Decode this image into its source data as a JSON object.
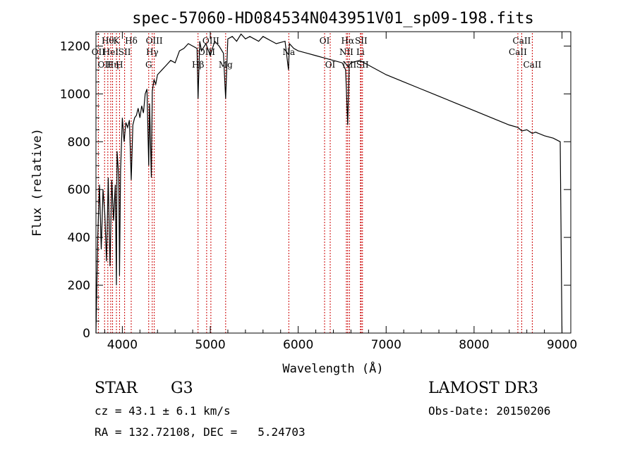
{
  "chart_data": {
    "type": "line",
    "title": "spec-57060-HD084534N043951V01_sp09-198.fits",
    "xlabel": "Wavelength (Å)",
    "ylabel": "Flux (relative)",
    "xlim": [
      3700,
      9100
    ],
    "ylim": [
      0,
      1260
    ],
    "xticks": [
      4000,
      5000,
      6000,
      7000,
      8000,
      9000
    ],
    "yticks": [
      0,
      200,
      400,
      600,
      800,
      1000,
      1200
    ],
    "grid": false,
    "series": [
      {
        "name": "flux",
        "x": [
          3700,
          3720,
          3740,
          3760,
          3780,
          3800,
          3820,
          3840,
          3860,
          3880,
          3900,
          3920,
          3933,
          3940,
          3960,
          3968,
          3980,
          4000,
          4020,
          4040,
          4060,
          4080,
          4101,
          4120,
          4140,
          4160,
          4180,
          4200,
          4220,
          4240,
          4260,
          4280,
          4300,
          4310,
          4330,
          4340,
          4360,
          4380,
          4400,
          4450,
          4500,
          4550,
          4600,
          4650,
          4700,
          4750,
          4800,
          4850,
          4861,
          4880,
          4900,
          4950,
          5000,
          5050,
          5100,
          5150,
          5175,
          5200,
          5250,
          5300,
          5350,
          5400,
          5450,
          5500,
          5550,
          5600,
          5650,
          5700,
          5750,
          5800,
          5850,
          5890,
          5900,
          5950,
          6000,
          6100,
          6200,
          6300,
          6400,
          6500,
          6540,
          6563,
          6580,
          6600,
          6700,
          6800,
          7000,
          7200,
          7400,
          7600,
          7800,
          8000,
          8200,
          8400,
          8498,
          8542,
          8600,
          8662,
          8700,
          8800,
          8900,
          8980,
          9000
        ],
        "y": [
          0,
          400,
          620,
          350,
          600,
          500,
          300,
          650,
          280,
          640,
          470,
          620,
          200,
          760,
          650,
          240,
          680,
          900,
          800,
          880,
          860,
          890,
          640,
          870,
          900,
          910,
          940,
          900,
          950,
          920,
          1000,
          1020,
          700,
          960,
          650,
          1010,
          1060,
          1040,
          1080,
          1100,
          1120,
          1140,
          1130,
          1180,
          1190,
          1210,
          1200,
          1190,
          980,
          1220,
          1180,
          1210,
          1160,
          1220,
          1200,
          1170,
          980,
          1230,
          1240,
          1220,
          1250,
          1230,
          1240,
          1230,
          1220,
          1240,
          1230,
          1220,
          1210,
          1215,
          1220,
          1100,
          1210,
          1190,
          1180,
          1170,
          1160,
          1150,
          1140,
          1130,
          1100,
          870,
          1120,
          1130,
          1140,
          1120,
          1080,
          1050,
          1020,
          990,
          960,
          930,
          900,
          870,
          860,
          845,
          850,
          835,
          840,
          825,
          815,
          800,
          0
        ]
      }
    ],
    "lines": [
      {
        "wavelength": 3727,
        "label": "OII",
        "row": 2
      },
      {
        "wavelength": 3798,
        "label": "OII",
        "row": 3
      },
      {
        "wavelength": 3835,
        "label": "Hθ",
        "row": 1
      },
      {
        "wavelength": 3868,
        "label": "HeI",
        "row": 2
      },
      {
        "wavelength": 3889,
        "label": "Hη",
        "row": 3
      },
      {
        "wavelength": 3933,
        "label": "K",
        "row": 1
      },
      {
        "wavelength": 3968,
        "label": "H",
        "row": 3
      },
      {
        "wavelength": 4026,
        "label": "SII",
        "row": 2
      },
      {
        "wavelength": 4101,
        "label": "Hδ",
        "row": 1
      },
      {
        "wavelength": 4300,
        "label": "G",
        "row": 3
      },
      {
        "wavelength": 4340,
        "label": "Hγ",
        "row": 2
      },
      {
        "wavelength": 4363,
        "label": "OIII",
        "row": 1
      },
      {
        "wavelength": 4861,
        "label": "Hβ",
        "row": 3
      },
      {
        "wavelength": 4959,
        "label": "OIII",
        "row": 2
      },
      {
        "wavelength": 5007,
        "label": "OIII",
        "row": 1
      },
      {
        "wavelength": 5175,
        "label": "Mg",
        "row": 3
      },
      {
        "wavelength": 5893,
        "label": "Na",
        "row": 2
      },
      {
        "wavelength": 6300,
        "label": "OI",
        "row": 1
      },
      {
        "wavelength": 6364,
        "label": "OI",
        "row": 3
      },
      {
        "wavelength": 6548,
        "label": "NII",
        "row": 2
      },
      {
        "wavelength": 6563,
        "label": "Hα",
        "row": 1
      },
      {
        "wavelength": 6583,
        "label": "NII",
        "row": 3
      },
      {
        "wavelength": 6708,
        "label": "Li",
        "row": 2
      },
      {
        "wavelength": 6716,
        "label": "SII",
        "row": 1
      },
      {
        "wavelength": 6731,
        "label": "SII",
        "row": 3
      },
      {
        "wavelength": 8498,
        "label": "CaII",
        "row": 2
      },
      {
        "wavelength": 8542,
        "label": "CaII",
        "row": 1
      },
      {
        "wavelength": 8662,
        "label": "CaII",
        "row": 3
      }
    ]
  },
  "info": {
    "class_label": "STAR",
    "subclass": "G3",
    "survey": "LAMOST DR3",
    "cz": "cz = 43.1 ± 6.1 km/s",
    "obs_date": "Obs-Date: 20150206",
    "coords": "RA = 132.72108, DEC =   5.24703"
  }
}
